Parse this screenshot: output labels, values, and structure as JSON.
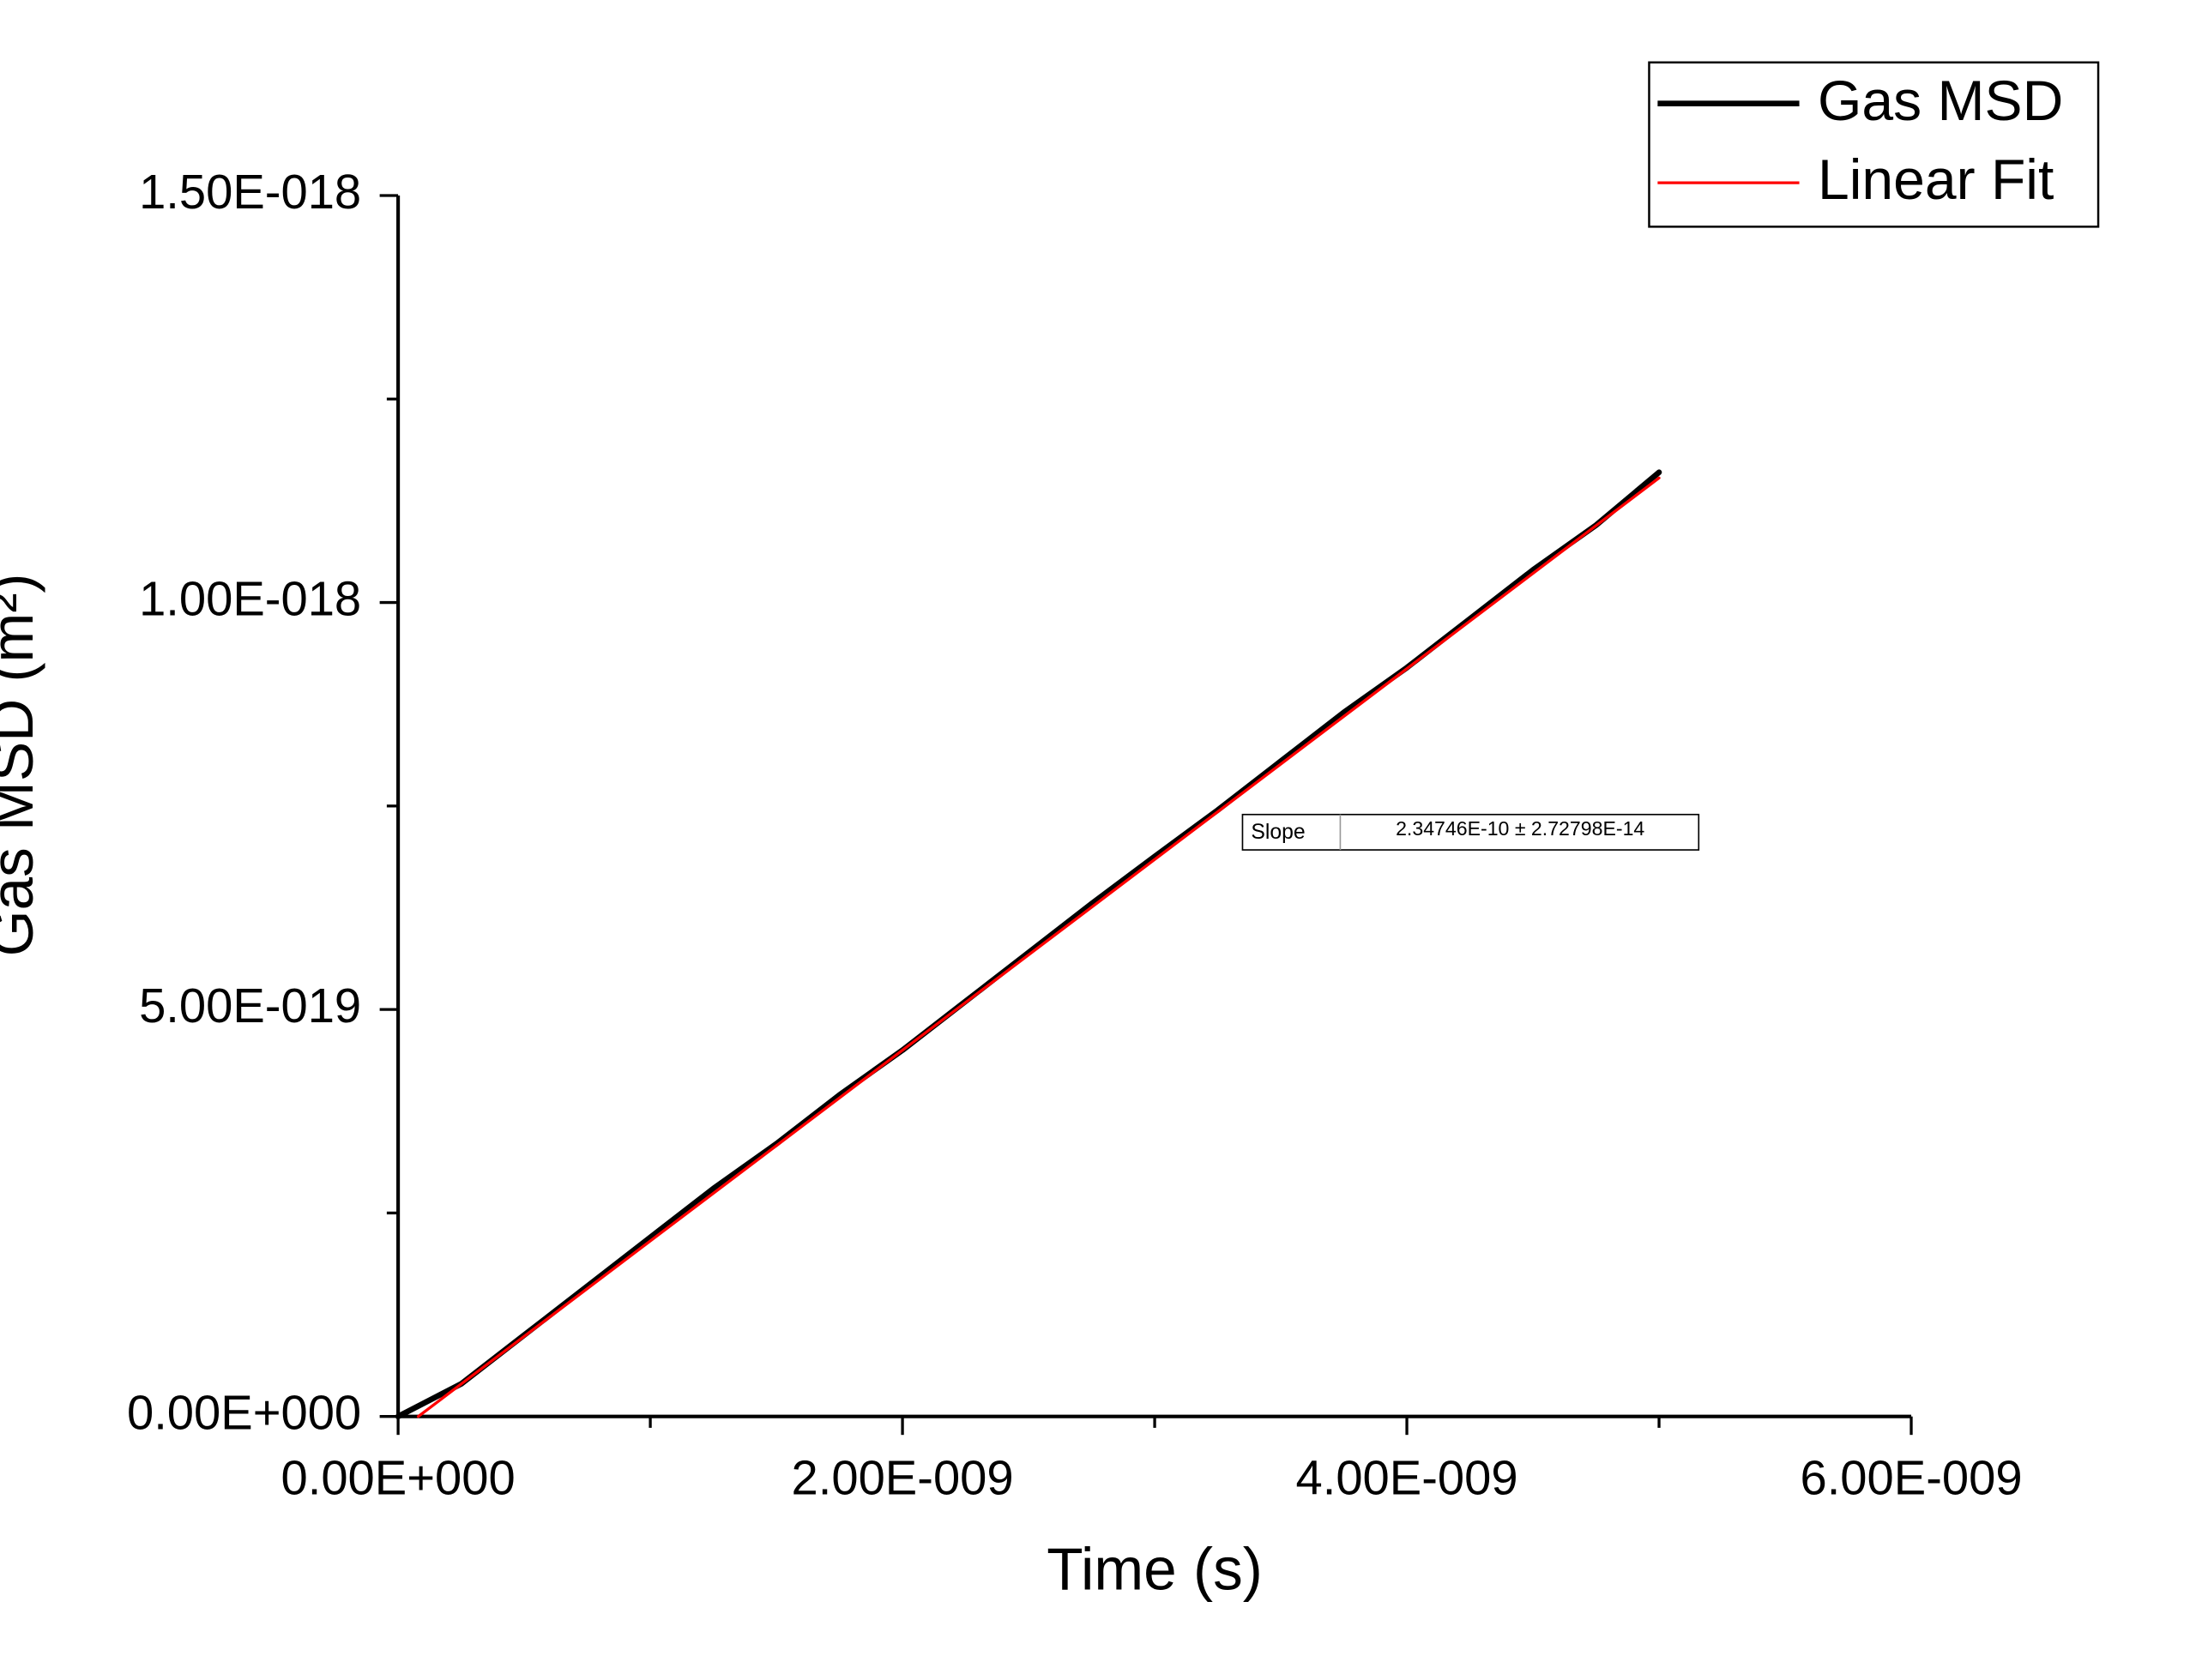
{
  "chart_data": {
    "type": "line",
    "xlabel": "Time (s)",
    "ylabel": "Gas MSD (m²)",
    "xlim": [
      0,
      6e-09
    ],
    "ylim": [
      0,
      1.5e-18
    ],
    "xticks": [
      {
        "value": 0,
        "label": "0.00E+000"
      },
      {
        "value": 2e-09,
        "label": "2.00E-009"
      },
      {
        "value": 4e-09,
        "label": "4.00E-009"
      },
      {
        "value": 6e-09,
        "label": "6.00E-009"
      }
    ],
    "xminorticks": [
      1e-09,
      3e-09,
      5e-09
    ],
    "yticks": [
      {
        "value": 0,
        "label": "0.00E+000"
      },
      {
        "value": 5e-19,
        "label": "5.00E-019"
      },
      {
        "value": 1e-18,
        "label": "1.00E-018"
      },
      {
        "value": 1.5e-18,
        "label": "1.50E-018"
      }
    ],
    "yminorticks": [
      2.5e-19,
      7.5e-19,
      1.25e-18
    ],
    "legend": "top-right",
    "series": [
      {
        "name": "Gas MSD",
        "color": "#000000",
        "x": [
          0,
          2.5e-10,
          5e-10,
          7.5e-10,
          1e-09,
          1.25e-09,
          1.5e-09,
          1.75e-09,
          2e-09,
          2.25e-09,
          2.5e-09,
          2.75e-09,
          3e-09,
          3.25e-09,
          3.5e-09,
          3.75e-09,
          4e-09,
          4.25e-09,
          4.5e-09,
          4.75e-09,
          5e-09
        ],
        "values": [
          0,
          4e-20,
          1e-19,
          1.6e-19,
          2.2e-19,
          2.8e-19,
          3.35e-19,
          3.95e-19,
          4.5e-19,
          5.1e-19,
          5.7e-19,
          6.3e-19,
          6.88e-19,
          7.45e-19,
          8.05e-19,
          8.65e-19,
          9.2e-19,
          9.8e-19,
          1.04e-18,
          1.095e-18,
          1.16e-18
        ]
      },
      {
        "name": "Linear Fit",
        "color": "#ff0000",
        "x": [
          8e-11,
          5e-09
        ],
        "values": [
          0,
          1.153e-18
        ]
      }
    ],
    "annotation": {
      "label": "Slope",
      "text": "2.34746E-10 ± 2.72798E-14"
    }
  }
}
